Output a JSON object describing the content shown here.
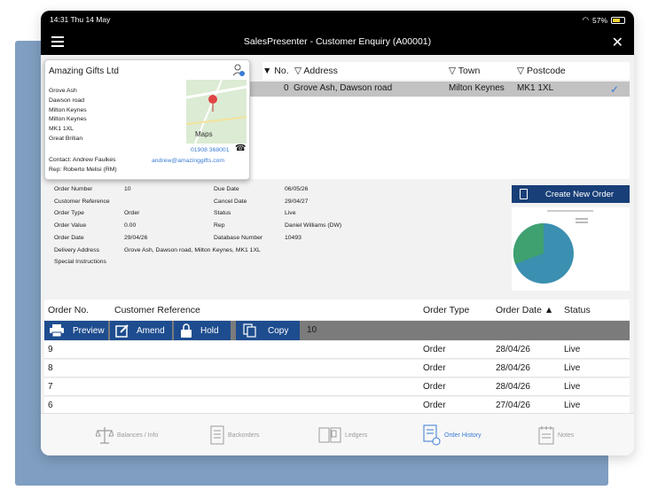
{
  "status_bar": {
    "time": "14:31 Thu 14 May",
    "battery": "57%"
  },
  "nav": {
    "title": "SalesPresenter - Customer Enquiry (A00001)",
    "close": "✕"
  },
  "address_table": {
    "headers": [
      "▼ No.",
      "▽ Address",
      "▽ Town",
      "▽ Postcode"
    ],
    "selected_row": {
      "no": "0",
      "address": "Grove Ash, Dawson road",
      "town": "Milton Keynes",
      "postcode": "MK1 1XL"
    }
  },
  "contact_card": {
    "company": "Amazing Gifts Ltd",
    "address_lines": [
      "Grove Ash",
      "Dawson road",
      "Milton Keynes",
      "Milton Keynes",
      "MK1 1XL",
      "Great Britian"
    ],
    "contact": "Contact: Andrew Faulkes",
    "rep": "Rep: Roberto Melisi (RM)",
    "phone": "01908 368001",
    "email": "andrew@amazinggifts.com",
    "map_label": "Maps"
  },
  "order_details": {
    "left": [
      {
        "label": "Order Number",
        "value": "10"
      },
      {
        "label": "Customer Reference",
        "value": ""
      },
      {
        "label": "Order Type",
        "value": "Order"
      },
      {
        "label": "Order Value",
        "value": "0.00"
      },
      {
        "label": "Order Date",
        "value": "29/04/26"
      },
      {
        "label": "Delivery Address",
        "value": "Grove Ash, Dawson road, Milton Keynes, MK1 1XL"
      },
      {
        "label": "Special Instructions",
        "value": ""
      }
    ],
    "right": [
      {
        "label": "Due Date",
        "value": "06/05/26"
      },
      {
        "label": "Cancel Date",
        "value": "29/04/27"
      },
      {
        "label": "Status",
        "value": "Live"
      },
      {
        "label": "Rep",
        "value": "Daniel Williams (DW)"
      },
      {
        "label": "Database Number",
        "value": "10493"
      }
    ]
  },
  "new_order_button": "Create New Order",
  "pie_colors": {
    "main": "#3b8fb0",
    "slice": "#3fa070"
  },
  "orders": {
    "headers": [
      "Order No.",
      "Customer Reference",
      "Order Type",
      "Order Date ▲",
      "Status"
    ],
    "toolbar": {
      "preview": "Preview",
      "amend": "Amend",
      "hold": "Hold",
      "copy": "Copy",
      "selected": "10"
    },
    "rows": [
      {
        "no": "9",
        "type": "Order",
        "date": "28/04/26",
        "status": "Live"
      },
      {
        "no": "8",
        "type": "Order",
        "date": "28/04/26",
        "status": "Live"
      },
      {
        "no": "7",
        "type": "Order",
        "date": "28/04/26",
        "status": "Live"
      },
      {
        "no": "6",
        "type": "Order",
        "date": "27/04/26",
        "status": "Live"
      }
    ]
  },
  "tabs": [
    {
      "label": "Balances / Info",
      "icon": "scales-icon"
    },
    {
      "label": "Backorders",
      "icon": "list-icon"
    },
    {
      "label": "Ledgers",
      "icon": "ledger-book-icon"
    },
    {
      "label": "Order History",
      "icon": "order-history-icon",
      "active": true
    },
    {
      "label": "Notes",
      "icon": "notepad-icon"
    }
  ],
  "colors": {
    "nav_bg": "#000000",
    "button_blue": "#1e4d8f",
    "accent": "#3a7bd5",
    "backdrop": "#7f9ec1"
  }
}
